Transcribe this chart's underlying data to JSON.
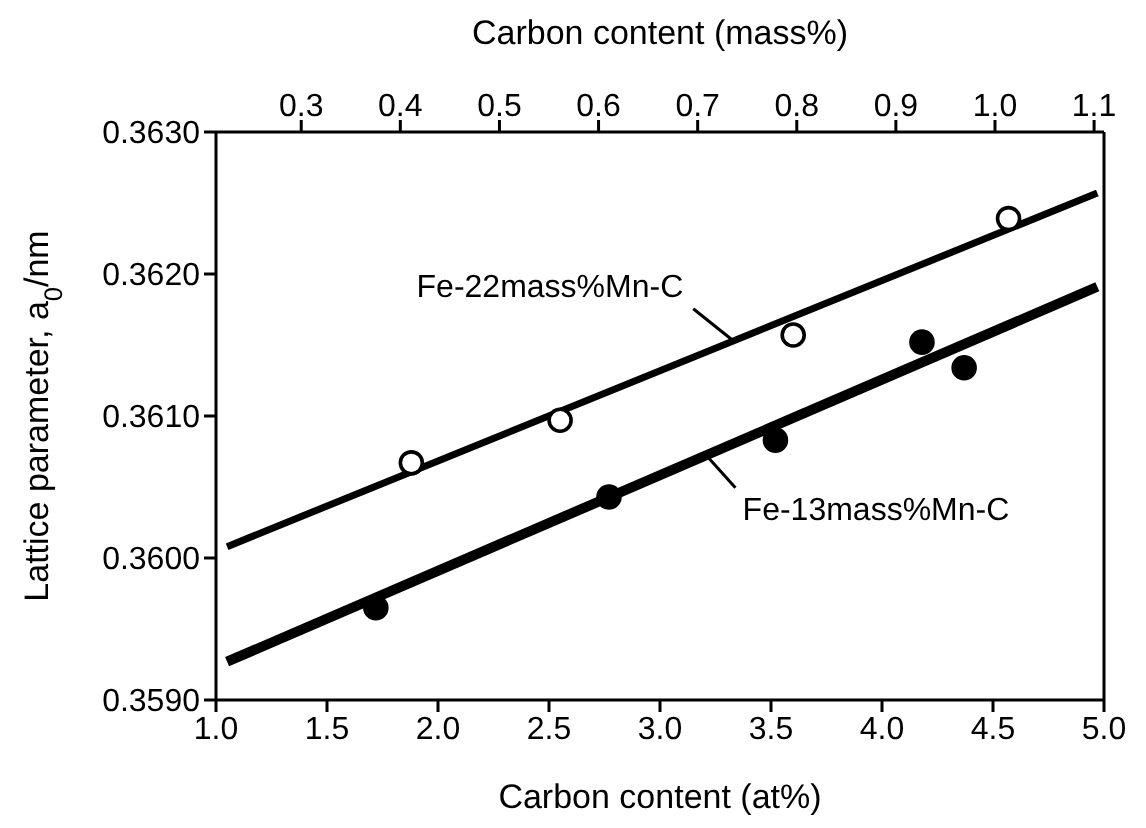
{
  "chart_data": {
    "type": "scatter",
    "xlabel": "Carbon content (at%)",
    "x2label": "Carbon content (mass%)",
    "ylabel": "Lattice parameter, a$_{0}$/nm",
    "xlim": [
      1.0,
      5.0
    ],
    "xticks": [
      {
        "value": 1,
        "label": "1.0"
      },
      {
        "value": 1.5,
        "label": "1.5"
      },
      {
        "value": 2,
        "label": "2.0"
      },
      {
        "value": 2.5,
        "label": "2.5"
      },
      {
        "value": 3,
        "label": "3.0"
      },
      {
        "value": 3.5,
        "label": "3.5"
      },
      {
        "value": 4,
        "label": "4.0"
      },
      {
        "value": 4.5,
        "label": "4.5"
      },
      {
        "value": 5,
        "label": "5.0"
      }
    ],
    "x2lim": [
      0.214,
      1.11
    ],
    "x2ticks": [
      0.3,
      0.4,
      0.5,
      0.6,
      0.7,
      0.8,
      0.9,
      {
        "value": 1,
        "label": "1.0"
      },
      1.1
    ],
    "ylim": [
      0.359,
      0.363
    ],
    "yticks": [
      {
        "value": 0.359,
        "label": "0.3590"
      },
      {
        "value": 0.36,
        "label": "0.3600"
      },
      {
        "value": 0.361,
        "label": "0.3610"
      },
      {
        "value": 0.362,
        "label": "0.3620"
      },
      {
        "value": 0.363,
        "label": "0.3630"
      }
    ],
    "grid": false,
    "legend": false,
    "series": [
      {
        "marker": "circle",
        "color": "#ffffff",
        "x": [
          1.88,
          2.55,
          3.6,
          4.57
        ],
        "values": [
          0.36067,
          0.36097,
          0.36157,
          0.36239
        ]
      },
      {
        "marker": "circle",
        "color": "#000000",
        "x": [
          1.72,
          2.77,
          3.52,
          4.18,
          4.37
        ],
        "values": [
          0.35965,
          0.36043,
          0.36083,
          0.36152,
          0.36134
        ]
      },
      {
        "type": "line",
        "marker": "none",
        "color": "#000000",
        "x": [
          1.05,
          4.97
        ],
        "values": [
          0.36008,
          0.36257
        ]
      },
      {
        "type": "line",
        "marker": "none",
        "color": "#000000",
        "x": [
          1.05,
          4.97
        ],
        "values": [
          0.35927,
          0.36191
        ]
      }
    ],
    "annotations": [
      {
        "text": "Fe-22mass%Mn-C",
        "x": 3.33,
        "y": 0.36153
      },
      {
        "text": "Fe-13mass%Mn-C",
        "x": 3.21,
        "y": 0.36072
      }
    ]
  }
}
